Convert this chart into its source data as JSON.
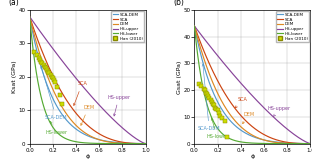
{
  "panel_a": {
    "title": "(a)",
    "ylabel": "Ksat (GPa)",
    "xlabel": "ϕ",
    "ylim": [
      0,
      40
    ],
    "xlim": [
      0,
      1.0
    ],
    "yticks": [
      0,
      10,
      20,
      30,
      40
    ],
    "xticks": [
      0,
      0.2,
      0.4,
      0.6,
      0.8,
      1.0
    ],
    "K0": 38.0
  },
  "panel_b": {
    "title": "(b)",
    "ylabel": "Gsat (GPa)",
    "xlabel": "ϕ",
    "ylim": [
      0,
      50
    ],
    "xlim": [
      0,
      1.0
    ],
    "yticks": [
      0,
      10,
      20,
      30,
      40,
      50
    ],
    "xticks": [
      0,
      0.2,
      0.4,
      0.6,
      0.8,
      1.0
    ],
    "G0": 44.0
  },
  "colors": {
    "SCA-DEM": "#5599CC",
    "SCA": "#CC4411",
    "DEM": "#DD8822",
    "HS-upper": "#884499",
    "HS-lower": "#55AA33"
  },
  "han_color": "#CCDD00",
  "han_edge": "#888800",
  "han2010_a": {
    "phi": [
      0.04,
      0.06,
      0.08,
      0.09,
      0.1,
      0.11,
      0.12,
      0.13,
      0.14,
      0.15,
      0.16,
      0.17,
      0.18,
      0.19,
      0.2,
      0.21,
      0.22,
      0.24,
      0.26,
      0.28
    ],
    "K": [
      27.5,
      26.5,
      25.5,
      25.0,
      24.5,
      24.0,
      23.5,
      23.0,
      22.5,
      22.0,
      21.5,
      21.0,
      20.5,
      20.0,
      19.5,
      19.0,
      18.5,
      17.0,
      14.5,
      12.0
    ]
  },
  "han2010_b": {
    "phi": [
      0.04,
      0.06,
      0.08,
      0.09,
      0.1,
      0.11,
      0.12,
      0.13,
      0.14,
      0.15,
      0.16,
      0.17,
      0.18,
      0.19,
      0.2,
      0.21,
      0.22,
      0.24,
      0.26,
      0.28
    ],
    "G": [
      22.5,
      21.5,
      20.5,
      20.0,
      19.0,
      18.5,
      18.0,
      17.0,
      16.5,
      15.5,
      15.0,
      14.5,
      13.5,
      13.0,
      12.5,
      11.5,
      10.5,
      9.5,
      8.5,
      2.5
    ]
  }
}
